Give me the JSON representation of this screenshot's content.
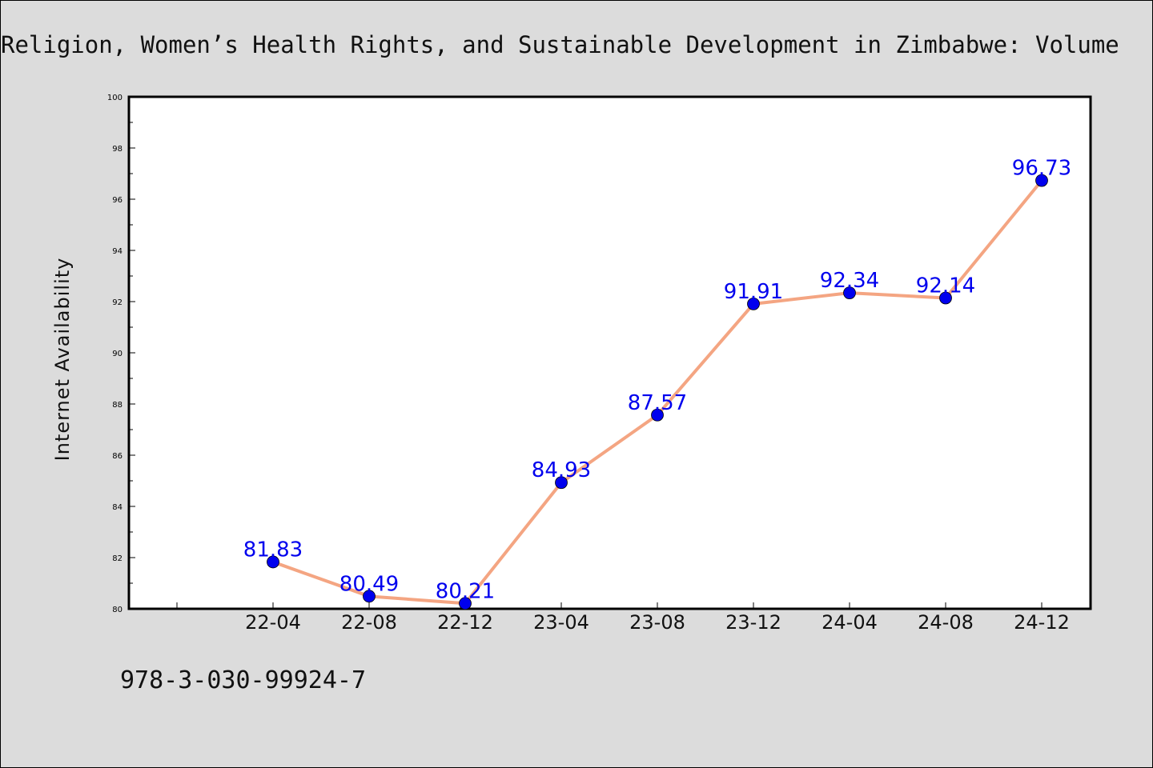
{
  "chart_data": {
    "type": "line",
    "title": "Religion, Women’s Health Rights, and Sustainable Development in Zimbabwe: Volume",
    "ylabel": "Internet Availability",
    "xlabel": "",
    "categories": [
      "22-04",
      "22-08",
      "22-12",
      "23-04",
      "23-08",
      "23-12",
      "24-04",
      "24-08",
      "24-12"
    ],
    "values": [
      81.83,
      80.49,
      80.21,
      84.93,
      87.57,
      91.91,
      92.34,
      92.14,
      96.73
    ],
    "data_labels": [
      "81.83",
      "80.49",
      "80.21",
      "84.93",
      "87.57",
      "91.91",
      "92.34",
      "92.14",
      "96.73"
    ],
    "ylim": [
      80,
      100
    ],
    "yticks": [
      "80",
      "82",
      "84",
      "86",
      "88",
      "90",
      "92",
      "94",
      "96",
      "98",
      "100"
    ],
    "line_color": "#f4a582",
    "marker_color": "#0000ee",
    "grid": false,
    "legend": "none"
  },
  "footer": {
    "isbn": "978-3-030-99924-7"
  },
  "colors": {
    "background": "#dcdcdc",
    "plot_background": "#ffffff"
  }
}
